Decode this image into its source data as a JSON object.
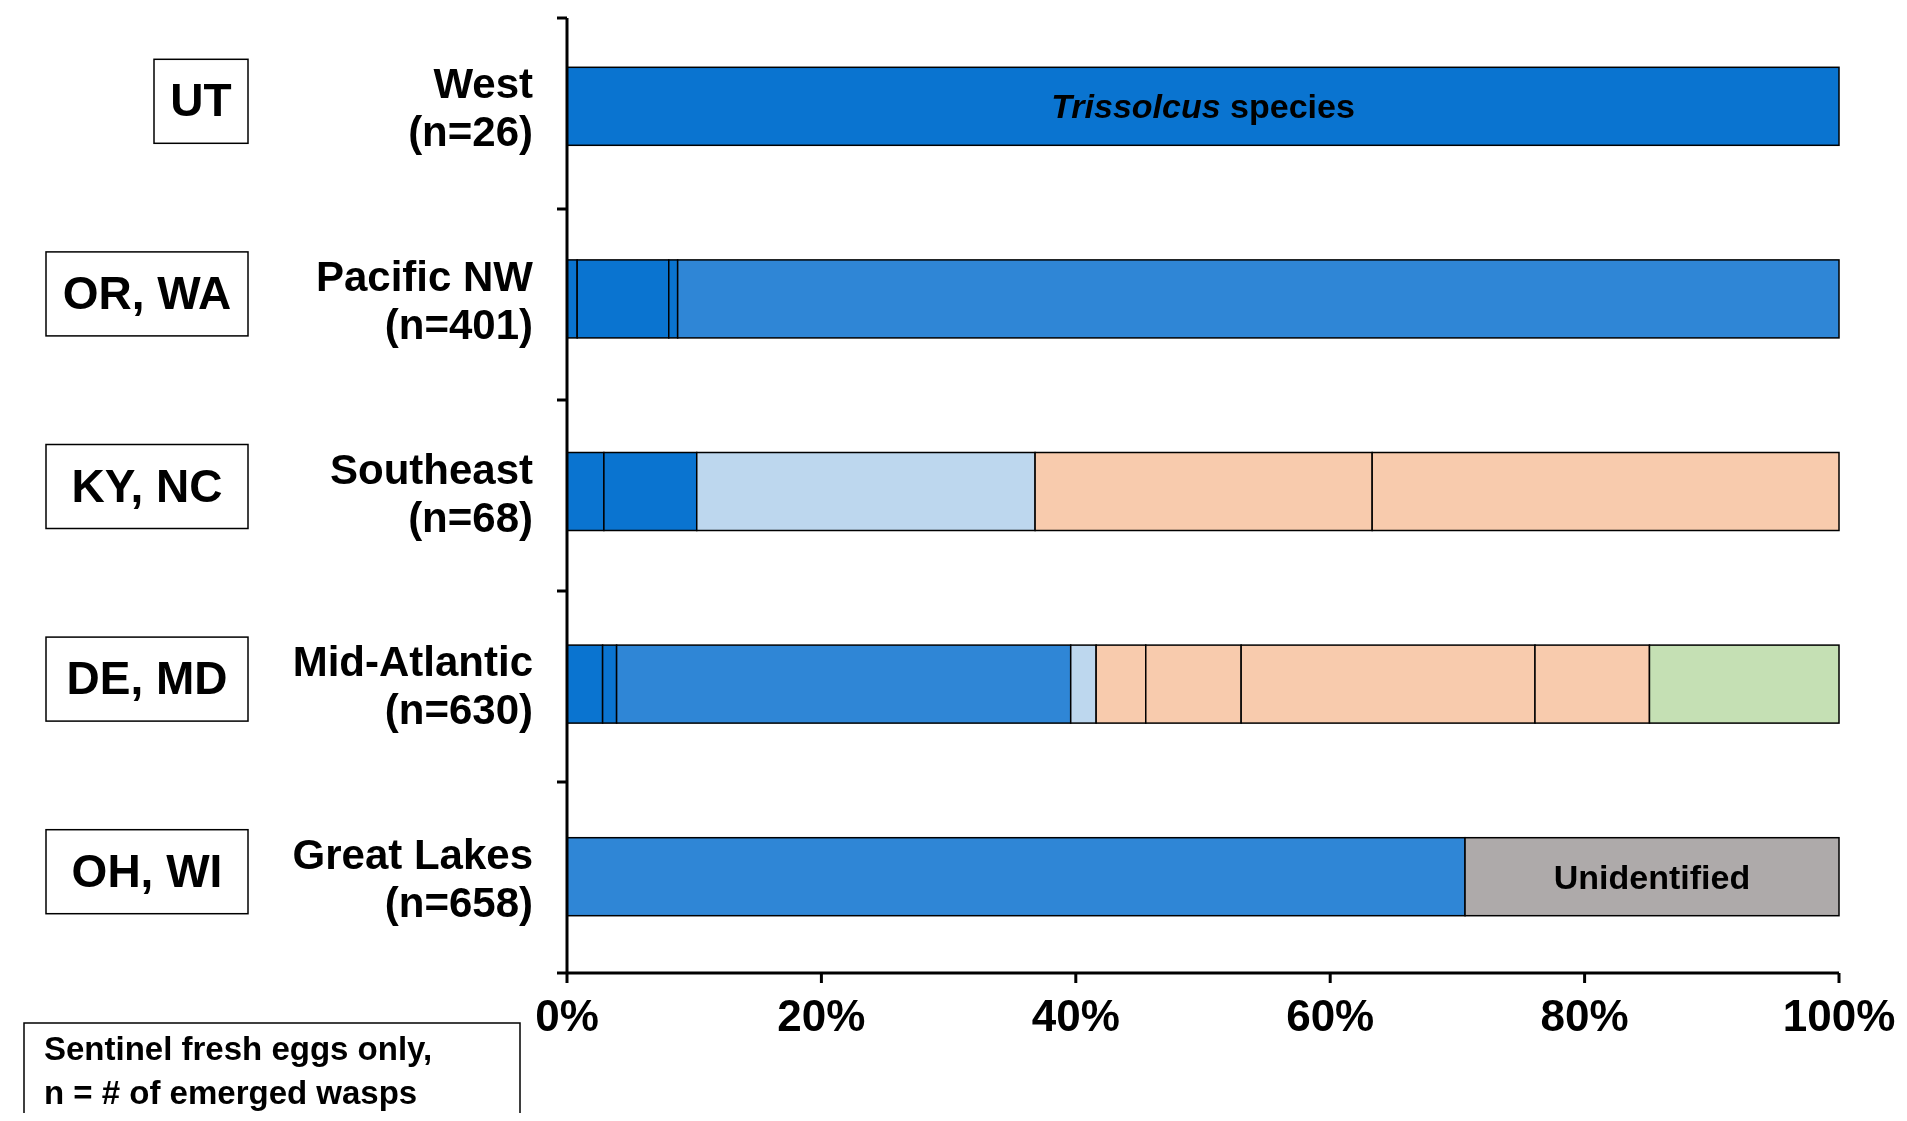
{
  "chart_data": {
    "type": "bar",
    "orientation": "horizontal",
    "stacked": true,
    "categories": [
      "West\n(n=26)",
      "Pacific NW\n(n=401)",
      "Southeast\n(n=68)",
      "Mid-Atlantic\n(n=630)",
      "Great Lakes\n(n=658)"
    ],
    "y2_categories": [
      "UT",
      "OR, WA",
      "KY, NC",
      "DE, MD",
      "OH, WI"
    ],
    "xlim": [
      0,
      100
    ],
    "xticks": [
      {
        "value": 0,
        "label": "0%"
      },
      {
        "value": 20,
        "label": "20%"
      },
      {
        "value": 40,
        "label": "40%"
      },
      {
        "value": 60,
        "label": "60%"
      },
      {
        "value": 80,
        "label": "80%"
      },
      {
        "value": 100,
        "label": "100%"
      }
    ],
    "grid": false,
    "series": [
      {
        "color": "#0a74d0",
        "values": [
          100,
          0.8,
          2.9,
          2.8,
          null
        ]
      },
      {
        "color": "#0a74d0",
        "values": [
          null,
          7.2,
          7.3,
          1.1,
          null
        ]
      },
      {
        "color": "#0a74d0",
        "values": [
          null,
          0.7,
          null,
          null,
          null
        ]
      },
      {
        "color": "#2f86d6",
        "values": [
          null,
          91.3,
          null,
          35.7,
          70.6
        ]
      },
      {
        "color": "#bdd7ee",
        "values": [
          null,
          null,
          26.6,
          2.0,
          null
        ]
      },
      {
        "color": "#f8cbad",
        "values": [
          null,
          null,
          26.5,
          3.9,
          null
        ]
      },
      {
        "color": "#f8cbad",
        "values": [
          null,
          null,
          36.7,
          7.5,
          null
        ]
      },
      {
        "color": "#f8cbad",
        "values": [
          null,
          null,
          null,
          23.1,
          null
        ]
      },
      {
        "color": "#f8cbad",
        "values": [
          null,
          null,
          null,
          9.0,
          null
        ]
      },
      {
        "color": "#c5e0b4",
        "values": [
          null,
          null,
          null,
          14.9,
          null
        ]
      },
      {
        "color": "#aeaaaa",
        "values": [
          null,
          null,
          null,
          null,
          29.4
        ]
      }
    ],
    "annotations": [
      "Trissolcus species",
      "Unidentified",
      "Sentinel fresh eggs only,\nn = # of emerged wasps"
    ]
  }
}
